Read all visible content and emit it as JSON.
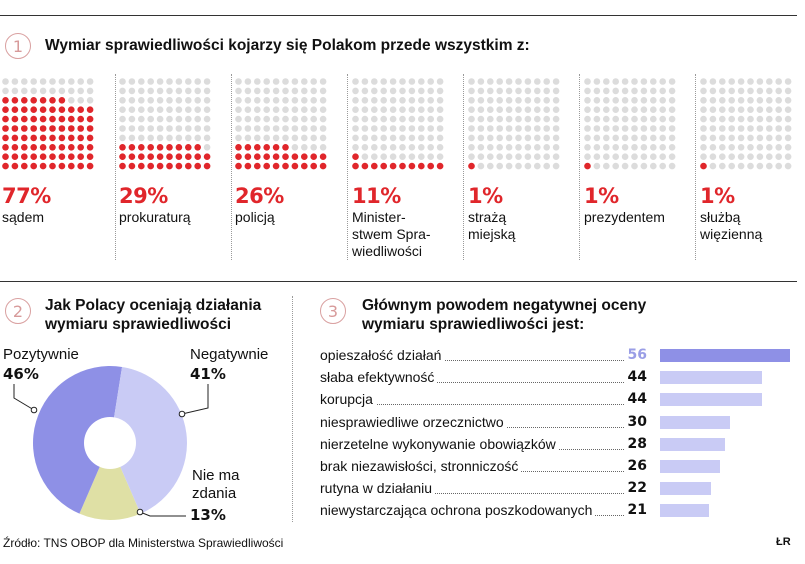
{
  "section1": {
    "number": "1",
    "title": "Wymiar sprawiedliwości kojarzy się Polakom przede wszystkim z:",
    "items": [
      {
        "pct": "77%",
        "label": "sądem",
        "value": 77
      },
      {
        "pct": "29%",
        "label": "prokuraturą",
        "value": 29
      },
      {
        "pct": "26%",
        "label": "policją",
        "value": 26
      },
      {
        "pct": "11%",
        "label": "Minister-\nstwem Spra-\nwiedliwości",
        "value": 11
      },
      {
        "pct": "1%",
        "label": "strażą\nmiejską",
        "value": 1
      },
      {
        "pct": "1%",
        "label": "prezydentem",
        "value": 1
      },
      {
        "pct": "1%",
        "label": "służbą\nwięzienną",
        "value": 1
      }
    ]
  },
  "section2": {
    "number": "2",
    "title_line1": "Jak Polacy oceniają działania",
    "title_line2": "wymiaru sprawiedliwości",
    "pos_label": "Pozytywnie",
    "pos_value": "46%",
    "neg_label": "Negatywnie",
    "neg_value": "41%",
    "none_label_line1": "Nie ma",
    "none_label_line2": "zdania",
    "none_value": "13%"
  },
  "section3": {
    "number": "3",
    "title_line1": "Głównym powodem negatywnej oceny",
    "title_line2": "wymiaru sprawiedliwości jest:"
  },
  "chart_data": [
    {
      "type": "bar",
      "title": "Wymiar sprawiedliwości kojarzy się Polakom przede wszystkim z:",
      "categories": [
        "sądem",
        "prokuraturą",
        "policją",
        "Ministerstwem Sprawiedliwości",
        "strażą miejską",
        "prezydentem",
        "służbą więzienną"
      ],
      "values": [
        77,
        29,
        26,
        11,
        1,
        1,
        1
      ],
      "unit": "%",
      "ylim": [
        0,
        100
      ]
    },
    {
      "type": "pie",
      "title": "Jak Polacy oceniają działania wymiaru sprawiedliwości",
      "categories": [
        "Pozytywnie",
        "Negatywnie",
        "Nie ma zdania"
      ],
      "values": [
        46,
        41,
        13
      ],
      "colors": [
        "#8e90e6",
        "#c9cbf5",
        "#dfe0a5"
      ]
    },
    {
      "type": "bar",
      "orientation": "horizontal",
      "title": "Głównym powodem negatywnej oceny wymiaru sprawiedliwości jest:",
      "categories": [
        "opieszałość działań",
        "słaba efektywność",
        "korupcja",
        "niesprawiedliwe orzecznictwo",
        "nierzetelne wykonywanie obowiązków",
        "brak niezawisłości, stronniczość",
        "rutyna w działaniu",
        "niewystarczająca ochrona poszkodowanych"
      ],
      "values": [
        56,
        44,
        44,
        30,
        28,
        26,
        22,
        21
      ],
      "xlim": [
        0,
        56
      ]
    }
  ],
  "colors": {
    "accent_red": "#e0262b",
    "bar_top": "#8e90e6",
    "bar": "#c9cbf5",
    "pie_none": "#dfe0a5"
  },
  "footer": {
    "source": "Źródło: TNS OBOP dla Ministerstwa Sprawiedliwości",
    "logo": "ŁR"
  }
}
